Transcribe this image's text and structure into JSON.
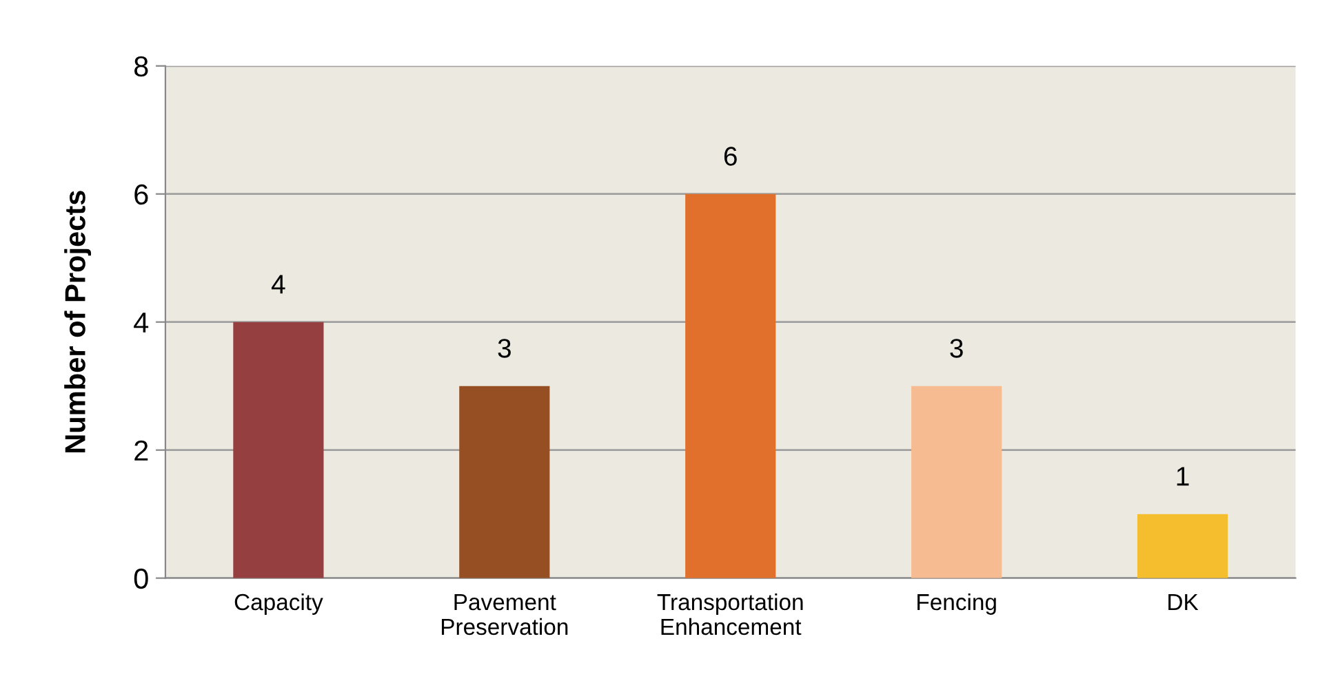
{
  "chart_data": {
    "type": "bar",
    "ylabel": "Number of Projects",
    "categories": [
      "Capacity",
      "Pavement\nPreservation",
      "Transportation\nEnhancement",
      "Fencing",
      "DK"
    ],
    "values": [
      4,
      3,
      6,
      3,
      1
    ],
    "colors": [
      "#953f40",
      "#954f22",
      "#e0702c",
      "#f6bb91",
      "#f4be2e"
    ],
    "ylim": [
      0,
      8
    ],
    "yticks": [
      0,
      2,
      4,
      6,
      8
    ],
    "grid": "y",
    "data_labels": true
  }
}
